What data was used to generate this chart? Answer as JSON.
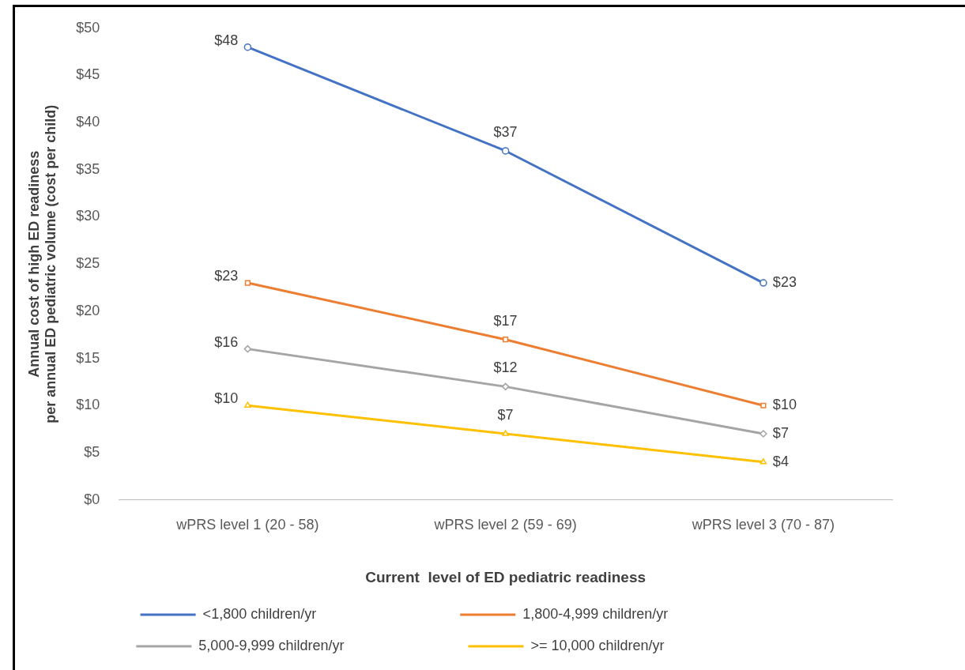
{
  "chart_data": {
    "type": "line",
    "xlabel": "Current  level of ED pediatric readiness",
    "ylabel": "Annual cost of high ED readiness\nper annual ED pediatric volume (cost per child)",
    "categories": [
      "wPRS level 1 (20 - 58)",
      "wPRS level 2 (59 - 69)",
      "wPRS level 3 (70 - 87)"
    ],
    "series": [
      {
        "name": "<1,800 children/yr",
        "color": "#4472c4",
        "marker": "circle",
        "values": [
          48,
          37,
          23
        ],
        "value_labels": [
          "$48",
          "$37",
          "$23"
        ]
      },
      {
        "name": "1,800-4,999 children/yr",
        "color": "#ed7d31",
        "marker": "square",
        "values": [
          23,
          17,
          10
        ],
        "value_labels": [
          "$23",
          "$17",
          "$10"
        ]
      },
      {
        "name": "5,000-9,999 children/yr",
        "color": "#a5a5a5",
        "marker": "diamond",
        "values": [
          16,
          12,
          7
        ],
        "value_labels": [
          "$16",
          "$12",
          "$7"
        ]
      },
      {
        "name": ">= 10,000 children/yr",
        "color": "#ffc000",
        "marker": "triangle",
        "values": [
          10,
          7,
          4
        ],
        "value_labels": [
          "$10",
          "$7",
          "$4"
        ]
      }
    ],
    "ylim": [
      0,
      50
    ],
    "yticks": [
      {
        "value": 0,
        "label": "$0"
      },
      {
        "value": 5,
        "label": "$5"
      },
      {
        "value": 10,
        "label": "$10"
      },
      {
        "value": 15,
        "label": "$15"
      },
      {
        "value": 20,
        "label": "$20"
      },
      {
        "value": 25,
        "label": "$25"
      },
      {
        "value": 30,
        "label": "$30"
      },
      {
        "value": 35,
        "label": "$35"
      },
      {
        "value": 40,
        "label": "$40"
      },
      {
        "value": 45,
        "label": "$45"
      },
      {
        "value": 50,
        "label": "$50"
      }
    ],
    "grid": false,
    "legend": "bottom"
  }
}
